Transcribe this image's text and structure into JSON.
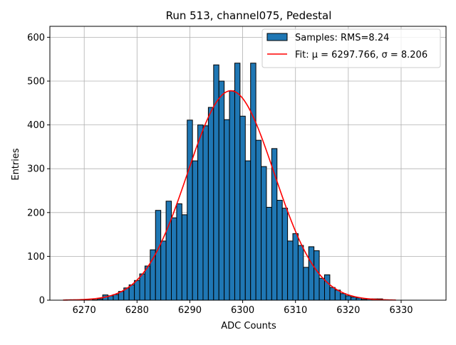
{
  "chart_data": {
    "type": "bar",
    "title": "Run 513, channel075, Pedestal",
    "xlabel": "ADC Counts",
    "ylabel": "Entries",
    "xlim": [
      6263.5,
      6338.5
    ],
    "ylim": [
      0,
      625
    ],
    "xticks": [
      6270,
      6280,
      6290,
      6300,
      6310,
      6320,
      6330
    ],
    "yticks": [
      0,
      100,
      200,
      300,
      400,
      500,
      600
    ],
    "grid": true,
    "legend_position": "top-right",
    "bin_width": 1,
    "bar_color": "#1f77b4",
    "bar_edge_color": "#000000",
    "fit_color": "#ff0000",
    "series": [
      {
        "name": "Samples: RMS=8.24",
        "type": "histogram",
        "x": [
          6267,
          6268,
          6269,
          6270,
          6271,
          6272,
          6273,
          6274,
          6275,
          6276,
          6277,
          6278,
          6279,
          6280,
          6281,
          6282,
          6283,
          6284,
          6285,
          6286,
          6287,
          6288,
          6289,
          6290,
          6291,
          6292,
          6293,
          6294,
          6295,
          6296,
          6297,
          6298,
          6299,
          6300,
          6301,
          6302,
          6303,
          6304,
          6305,
          6306,
          6307,
          6308,
          6309,
          6310,
          6311,
          6312,
          6313,
          6314,
          6315,
          6316,
          6317,
          6318,
          6319,
          6320,
          6321,
          6322,
          6323,
          6324,
          6325,
          6326,
          6327,
          6328
        ],
        "values": [
          1,
          1,
          0,
          0,
          0,
          1,
          3,
          12,
          10,
          13,
          20,
          28,
          35,
          45,
          60,
          78,
          115,
          205,
          135,
          226,
          188,
          220,
          195,
          411,
          318,
          400,
          398,
          440,
          537,
          500,
          412,
          478,
          541,
          420,
          318,
          541,
          365,
          305,
          212,
          346,
          228,
          210,
          135,
          152,
          125,
          75,
          122,
          113,
          50,
          58,
          29,
          23,
          15,
          10,
          7,
          5,
          2,
          3,
          3,
          3,
          0,
          0
        ]
      },
      {
        "name": "Fit: μ = 6297.766, σ = 8.206",
        "type": "gaussian-fit",
        "mu": 6297.766,
        "sigma": 8.206,
        "amplitude": 478,
        "x_range": [
          6266,
          6329
        ]
      }
    ]
  }
}
